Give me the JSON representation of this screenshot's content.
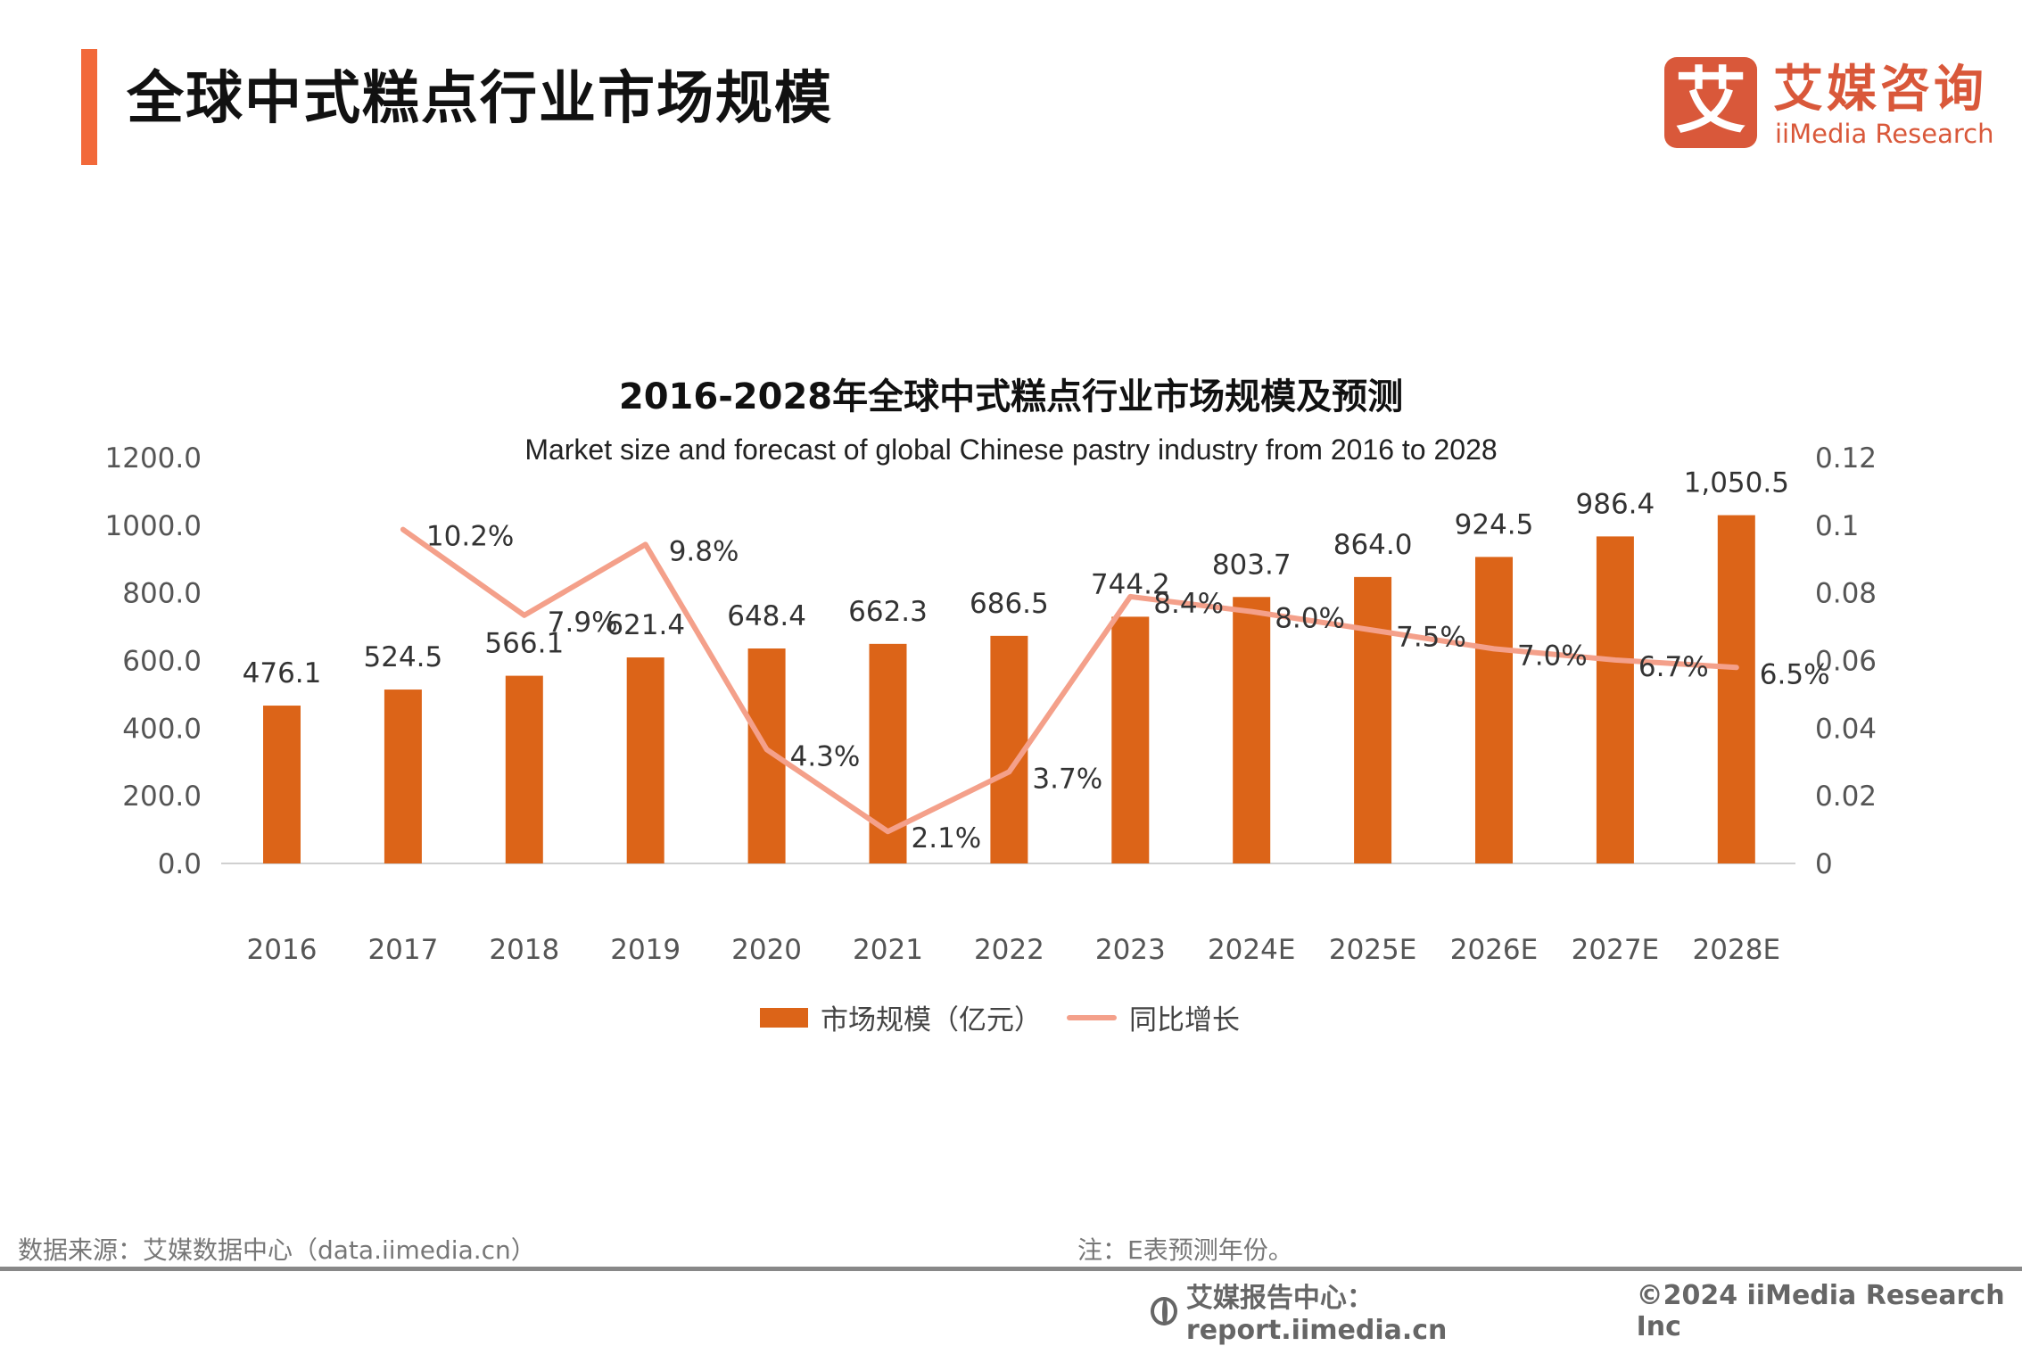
{
  "header": {
    "title": "全球中式糕点行业市场规模",
    "accent_color": "#f2693a"
  },
  "logo": {
    "glyph": "艾",
    "name_cn": "艾媒咨询",
    "name_en": "iiMedia Research",
    "color": "#d9583a"
  },
  "chart_data": {
    "type": "bar",
    "title": "2016-2028年全球中式糕点行业市场规模及预测",
    "subtitle": "Market size and forecast of global Chinese pastry industry from 2016 to 2028",
    "categories": [
      "2016",
      "2017",
      "2018",
      "2019",
      "2020",
      "2021",
      "2022",
      "2023",
      "2024E",
      "2025E",
      "2026E",
      "2027E",
      "2028E"
    ],
    "series": [
      {
        "name": "市场规模（亿元）",
        "type": "bar",
        "axis": "left",
        "color": "#dc6418",
        "values": [
          476.1,
          524.5,
          566.1,
          621.4,
          648.4,
          662.3,
          686.5,
          744.2,
          803.7,
          864.0,
          924.5,
          986.4,
          1050.5
        ],
        "labels": [
          "476.1",
          "524.5",
          "566.1",
          "621.4",
          "648.4",
          "662.3",
          "686.5",
          "744.2",
          "803.7",
          "864.0",
          "924.5",
          "986.4",
          "1,050.5"
        ]
      },
      {
        "name": "同比增长",
        "type": "line",
        "axis": "right",
        "color": "#f4a08a",
        "values": [
          null,
          0.102,
          0.079,
          0.098,
          0.043,
          0.021,
          0.037,
          0.084,
          0.08,
          0.075,
          0.07,
          0.067,
          0.065
        ],
        "labels": [
          null,
          "10.2%",
          "7.9%",
          "9.8%",
          "4.3%",
          "2.1%",
          "3.7%",
          "8.4%",
          "8.0%",
          "7.5%",
          "7.0%",
          "6.7%",
          "6.5%"
        ]
      }
    ],
    "y_left": {
      "ylim": [
        0,
        1200
      ],
      "ticks": [
        "0.0",
        "200.0",
        "400.0",
        "600.0",
        "800.0",
        "1000.0",
        "1200.0"
      ]
    },
    "y_right": {
      "ylim": [
        0,
        0.12
      ],
      "ticks": [
        "0",
        "0.02",
        "0.04",
        "0.06",
        "0.08",
        "0.1",
        "0.12"
      ]
    },
    "grid": false,
    "legend_position": "bottom"
  },
  "footer": {
    "source": "数据来源：艾媒数据中心（data.iimedia.cn）",
    "note": "注：E表预测年份。",
    "report_center": "艾媒报告中心：report.iimedia.cn",
    "copyright": "©2024  iiMedia Research  Inc"
  }
}
